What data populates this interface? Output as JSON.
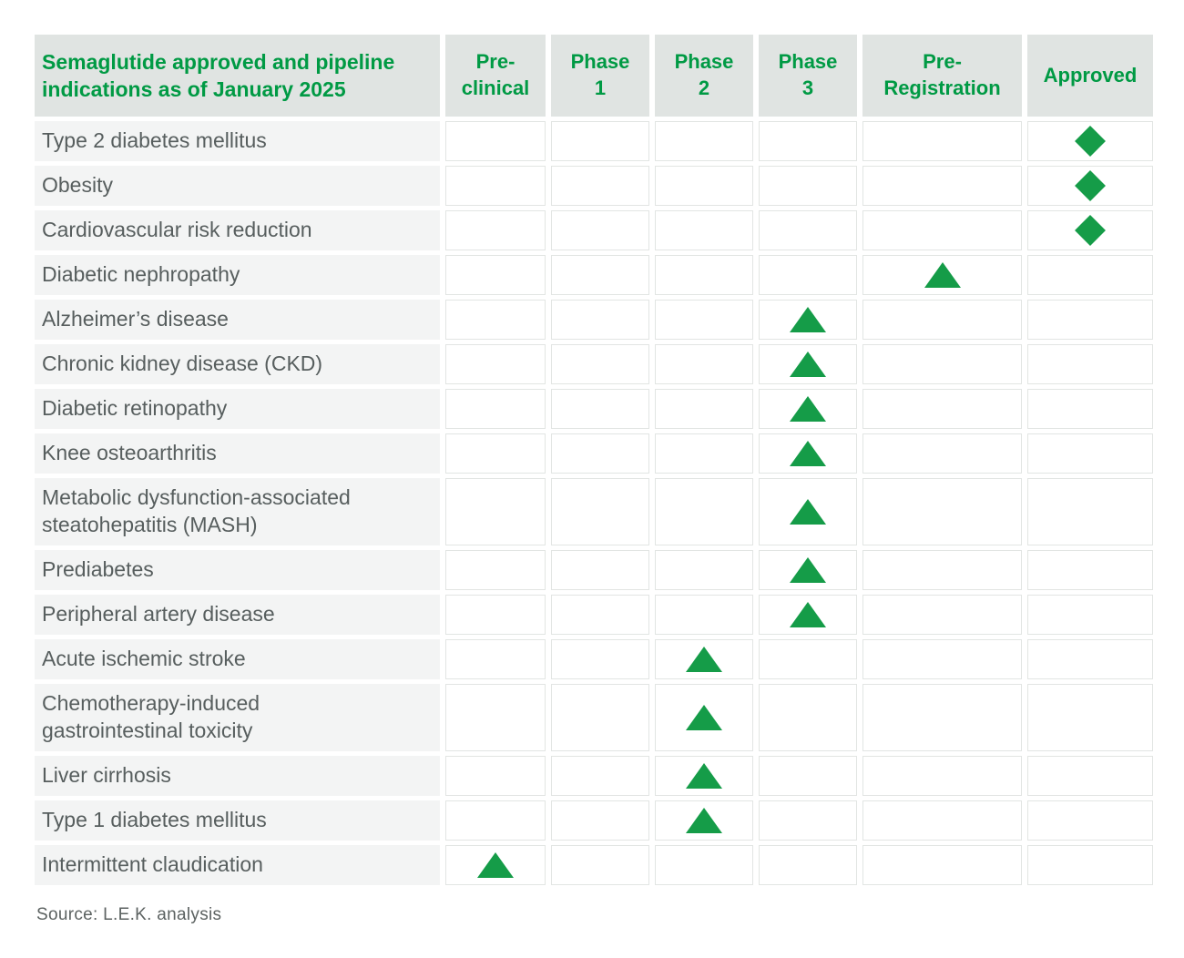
{
  "header": {
    "title_display": "Semaglutide approved and pipeline\nindications as of January 2025",
    "columns_display": [
      "Pre-\nclinical",
      "Phase\n1",
      "Phase\n2",
      "Phase\n3",
      "Pre-\nRegistration",
      "Approved"
    ]
  },
  "footer": {
    "source": "Source: L.E.K. analysis"
  },
  "colors": {
    "brand_green": "#009A44",
    "marker_green": "#159C48",
    "header_bg": "#E0E4E2",
    "label_bg": "#F3F4F4",
    "cell_border": "#E2E5E3",
    "label_text": "#575E5E",
    "source_text": "#5C6261"
  },
  "chart_data": {
    "type": "table",
    "title": "Semaglutide approved and pipeline indications as of January 2025",
    "columns": [
      "Pre-clinical",
      "Phase 1",
      "Phase 2",
      "Phase 3",
      "Pre-Registration",
      "Approved"
    ],
    "marker_shapes": {
      "approved": "diamond",
      "pipeline": "triangle"
    },
    "rows": [
      {
        "indication": "Type 2 diabetes mellitus",
        "stage": "Approved",
        "marker": "diamond"
      },
      {
        "indication": "Obesity",
        "stage": "Approved",
        "marker": "diamond"
      },
      {
        "indication": "Cardiovascular risk reduction",
        "stage": "Approved",
        "marker": "diamond"
      },
      {
        "indication": "Diabetic nephropathy",
        "stage": "Pre-Registration",
        "marker": "triangle"
      },
      {
        "indication": "Alzheimer’s disease",
        "stage": "Phase 3",
        "marker": "triangle"
      },
      {
        "indication": "Chronic kidney disease (CKD)",
        "stage": "Phase 3",
        "marker": "triangle"
      },
      {
        "indication": "Diabetic retinopathy",
        "stage": "Phase 3",
        "marker": "triangle"
      },
      {
        "indication": "Knee osteoarthritis",
        "stage": "Phase 3",
        "marker": "triangle"
      },
      {
        "indication": "Metabolic dysfunction-associated steatohepatitis (MASH)",
        "stage": "Phase 3",
        "marker": "triangle"
      },
      {
        "indication": "Prediabetes",
        "stage": "Phase 3",
        "marker": "triangle"
      },
      {
        "indication": "Peripheral artery disease",
        "stage": "Phase 3",
        "marker": "triangle"
      },
      {
        "indication": "Acute ischemic stroke",
        "stage": "Phase 2",
        "marker": "triangle"
      },
      {
        "indication": "Chemotherapy-induced gastrointestinal toxicity",
        "stage": "Phase 2",
        "marker": "triangle"
      },
      {
        "indication": "Liver cirrhosis",
        "stage": "Phase 2",
        "marker": "triangle"
      },
      {
        "indication": "Type 1 diabetes mellitus",
        "stage": "Phase 2",
        "marker": "triangle"
      },
      {
        "indication": "Intermittent claudication",
        "stage": "Pre-clinical",
        "marker": "triangle"
      }
    ]
  }
}
